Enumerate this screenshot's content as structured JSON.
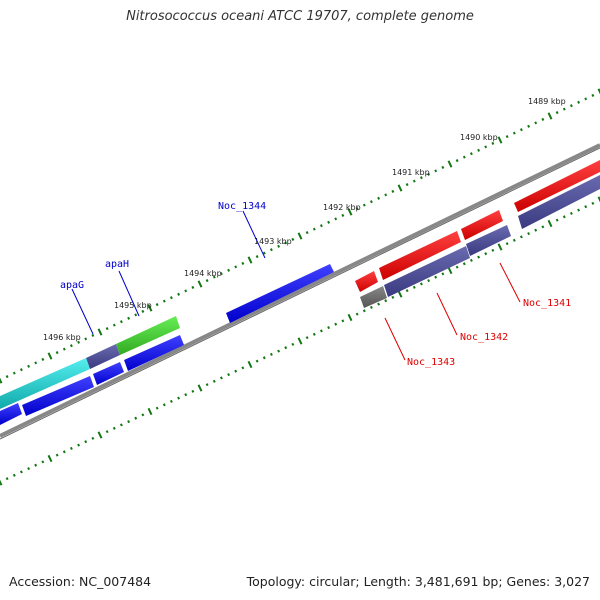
{
  "title": "Nitrosococcus oceani ATCC 19707, complete genome",
  "footer": {
    "accession": "Accession: NC_007484",
    "stats": "Topology: circular; Length: 3,481,691 bp; Genes: 3,027"
  },
  "ticks": [
    "1489 kbp",
    "1490 kbp",
    "1491 kbp",
    "1492 kbp",
    "1493 kbp",
    "1494 kbp",
    "1495 kbp",
    "1496 kbp"
  ],
  "gene_labels": [
    {
      "name": "Noc_1344",
      "strand": "outer",
      "color": "#0000cc"
    },
    {
      "name": "apaH",
      "strand": "outer",
      "color": "#0000cc"
    },
    {
      "name": "apaG",
      "strand": "outer",
      "color": "#0000cc"
    },
    {
      "name": "Noc_1341",
      "strand": "inner",
      "color": "#dd0000"
    },
    {
      "name": "Noc_1342",
      "strand": "inner",
      "color": "#dd0000"
    },
    {
      "name": "Noc_1343",
      "strand": "inner",
      "color": "#dd0000"
    }
  ],
  "colors": {
    "forward_cds": "#0000ee",
    "reverse_cds": "#ee0000",
    "combined_track": "#4a4a96",
    "green_feature": "#44cc33",
    "cyan_feature": "#22cccc",
    "gray_feature": "#666666",
    "backbone": "#888888",
    "tick_marks": "#117711"
  }
}
